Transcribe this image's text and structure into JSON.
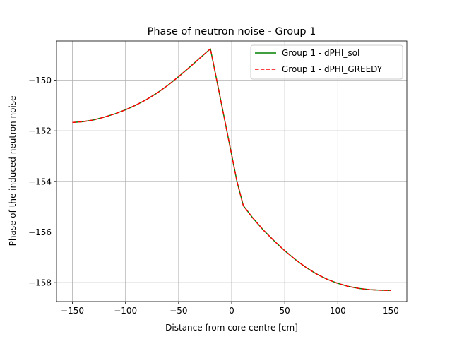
{
  "chart_data": {
    "type": "line",
    "title": "Phase of neutron noise - Group 1",
    "xlabel": "Distance from core centre [cm]",
    "ylabel": "Phase of the induced neutron noise",
    "xlim": [
      -165,
      165
    ],
    "ylim": [
      -158.75,
      -148.45
    ],
    "xticks": [
      -150,
      -100,
      -50,
      0,
      50,
      100,
      150
    ],
    "yticks": [
      -158,
      -156,
      -154,
      -152,
      -150
    ],
    "grid": true,
    "legend_position": "top-right",
    "series": [
      {
        "name": "Group 1 - dPHI_sol",
        "color": "#008000",
        "style": "solid",
        "x": [
          -150,
          -140,
          -130,
          -120,
          -110,
          -100,
          -90,
          -80,
          -70,
          -60,
          -50,
          -40,
          -30,
          -20,
          -15,
          -10,
          -5,
          0,
          5,
          11,
          20,
          30,
          40,
          50,
          60,
          70,
          80,
          90,
          100,
          110,
          120,
          130,
          140,
          150
        ],
        "y": [
          -151.67,
          -151.64,
          -151.57,
          -151.46,
          -151.33,
          -151.17,
          -150.98,
          -150.76,
          -150.5,
          -150.2,
          -149.86,
          -149.5,
          -149.13,
          -148.76,
          -149.8,
          -150.85,
          -151.9,
          -152.95,
          -154.0,
          -154.96,
          -155.45,
          -155.93,
          -156.35,
          -156.74,
          -157.09,
          -157.4,
          -157.66,
          -157.87,
          -158.03,
          -158.15,
          -158.23,
          -158.28,
          -158.3,
          -158.31
        ]
      },
      {
        "name": "Group 1 - dPHI_GREEDY",
        "color": "#ff0000",
        "style": "dashed",
        "x": [
          -150,
          -140,
          -130,
          -120,
          -110,
          -100,
          -90,
          -80,
          -70,
          -60,
          -50,
          -40,
          -30,
          -20,
          -15,
          -10,
          -5,
          0,
          5,
          11,
          20,
          30,
          40,
          50,
          60,
          70,
          80,
          90,
          100,
          110,
          120,
          130,
          140,
          150
        ],
        "y": [
          -151.67,
          -151.64,
          -151.57,
          -151.46,
          -151.33,
          -151.17,
          -150.98,
          -150.76,
          -150.5,
          -150.2,
          -149.86,
          -149.5,
          -149.13,
          -148.76,
          -149.8,
          -150.85,
          -151.9,
          -152.95,
          -154.0,
          -154.96,
          -155.45,
          -155.93,
          -156.35,
          -156.74,
          -157.09,
          -157.4,
          -157.66,
          -157.87,
          -158.03,
          -158.15,
          -158.23,
          -158.28,
          -158.3,
          -158.31
        ]
      }
    ]
  }
}
